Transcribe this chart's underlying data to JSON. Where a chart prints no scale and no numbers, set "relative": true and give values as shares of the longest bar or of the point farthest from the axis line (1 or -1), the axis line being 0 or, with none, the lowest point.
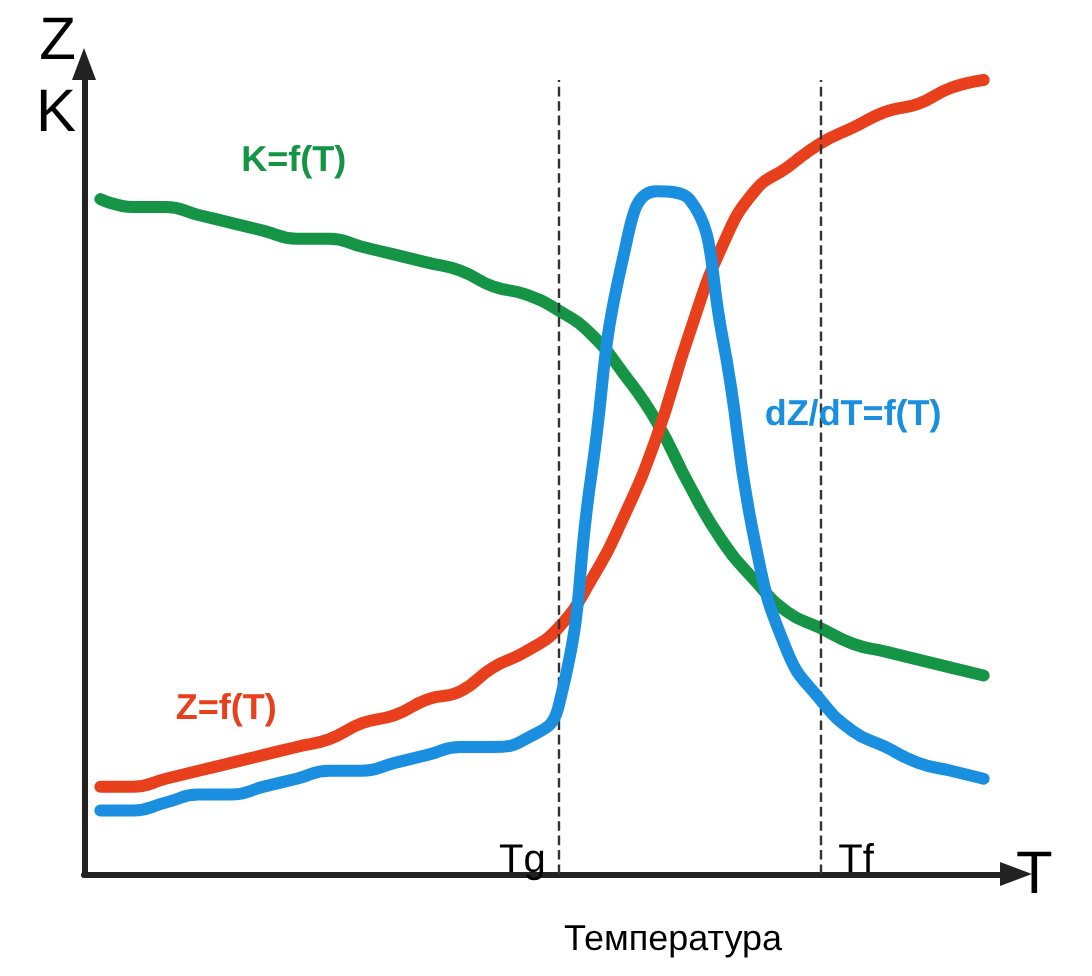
{
  "chart_data": {
    "type": "line",
    "relative": true,
    "xlabel": "T",
    "ylabel": "Z\nK",
    "annotations": [
      "Температура",
      "Tg",
      "Tf"
    ],
    "categories": [
      null,
      null,
      null,
      null,
      null,
      null,
      null,
      null,
      null,
      null,
      null,
      null,
      null,
      null,
      null,
      null,
      null,
      null,
      null,
      null,
      null,
      null,
      null,
      null,
      null,
      null,
      null,
      null
    ],
    "series": [
      {
        "name": "K=f(T)",
        "color": "#149444",
        "values": [
          0.85,
          0.84,
          0.84,
          0.83,
          0.82,
          0.81,
          0.8,
          0.8,
          0.79,
          0.78,
          0.77,
          0.76,
          0.74,
          0.73,
          0.71,
          0.68,
          0.63,
          0.57,
          0.49,
          0.42,
          0.37,
          0.33,
          0.31,
          0.29,
          0.28,
          0.27,
          0.26,
          0.25
        ]
      },
      {
        "name": "Z=f(T)",
        "color": "#e8401c",
        "values": [
          0.11,
          0.11,
          0.12,
          0.13,
          0.14,
          0.15,
          0.16,
          0.17,
          0.19,
          0.2,
          0.22,
          0.23,
          0.26,
          0.28,
          0.31,
          0.37,
          0.45,
          0.55,
          0.68,
          0.79,
          0.86,
          0.89,
          0.92,
          0.94,
          0.96,
          0.97,
          0.99,
          1.0
        ]
      },
      {
        "name": "dZ/dT=f(T)",
        "color": "#1a8fe0",
        "values": [
          0.08,
          0.08,
          0.09,
          0.1,
          0.1,
          0.11,
          0.12,
          0.13,
          0.13,
          0.14,
          0.15,
          0.16,
          0.16,
          0.17,
          0.21,
          0.5,
          0.78,
          0.86,
          0.85,
          0.68,
          0.42,
          0.28,
          0.22,
          0.18,
          0.16,
          0.14,
          0.13,
          0.12
        ]
      }
    ],
    "legend": false,
    "grid": false,
    "marker": "none",
    "line_style": "solid"
  }
}
